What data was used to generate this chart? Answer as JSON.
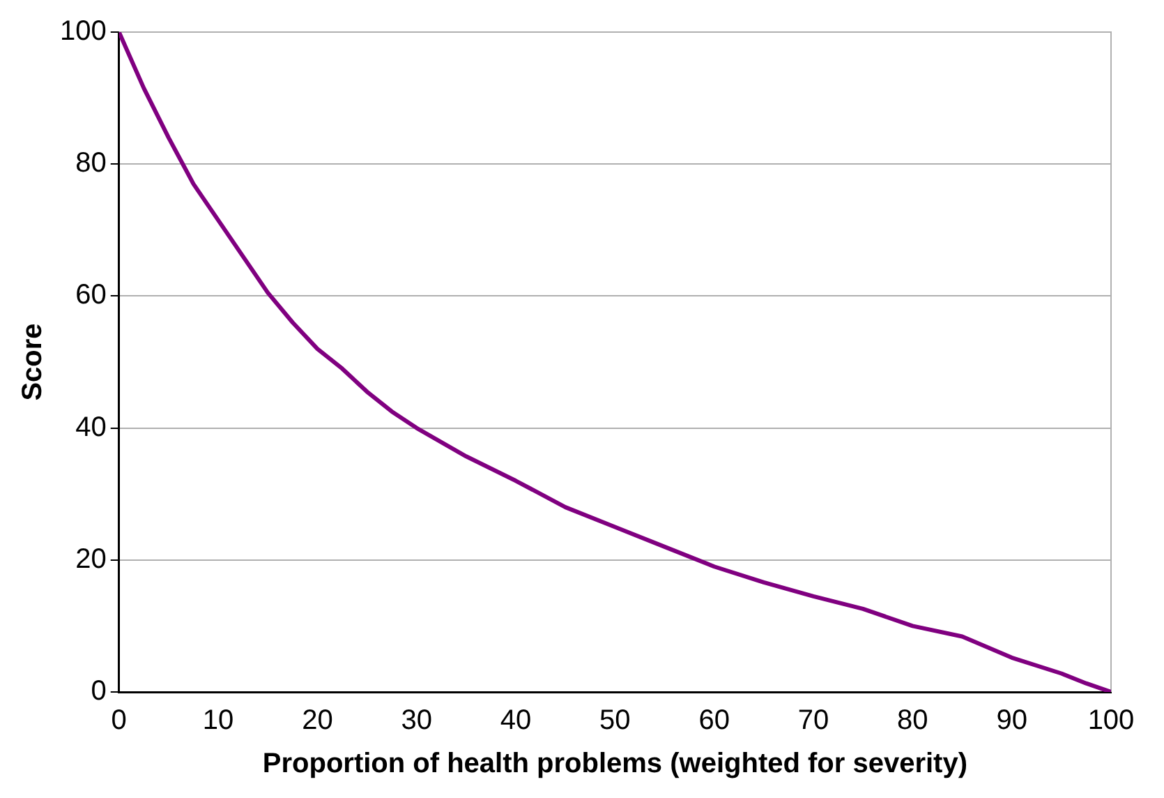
{
  "chart_data": {
    "type": "line",
    "xlabel": "Proportion of health problems (weighted for severity)",
    "ylabel": "Score",
    "x": [
      0,
      2.5,
      5,
      7.5,
      10,
      12.5,
      15,
      17.5,
      20,
      22.5,
      25,
      27.5,
      30,
      35,
      40,
      45,
      50,
      55,
      60,
      65,
      70,
      75,
      80,
      85,
      90,
      95,
      97.5,
      100
    ],
    "series": [
      {
        "color": "#800080",
        "values": [
          100,
          91.5,
          84,
          77,
          71.5,
          66,
          60.5,
          56,
          52,
          49,
          45.5,
          42.5,
          40,
          35.7,
          32,
          28,
          25,
          22,
          19,
          16.6,
          14.5,
          12.6,
          10,
          8.4,
          5.2,
          2.8,
          1.3,
          0
        ]
      }
    ],
    "xlim": [
      0,
      100
    ],
    "xticks": [
      0,
      10,
      20,
      30,
      40,
      50,
      60,
      70,
      80,
      90,
      100
    ],
    "ylim": [
      0,
      100
    ],
    "yticks": [
      0,
      20,
      40,
      60,
      80,
      100
    ],
    "grid": "y",
    "legend": false,
    "marker": "none",
    "line_style": "solid"
  }
}
